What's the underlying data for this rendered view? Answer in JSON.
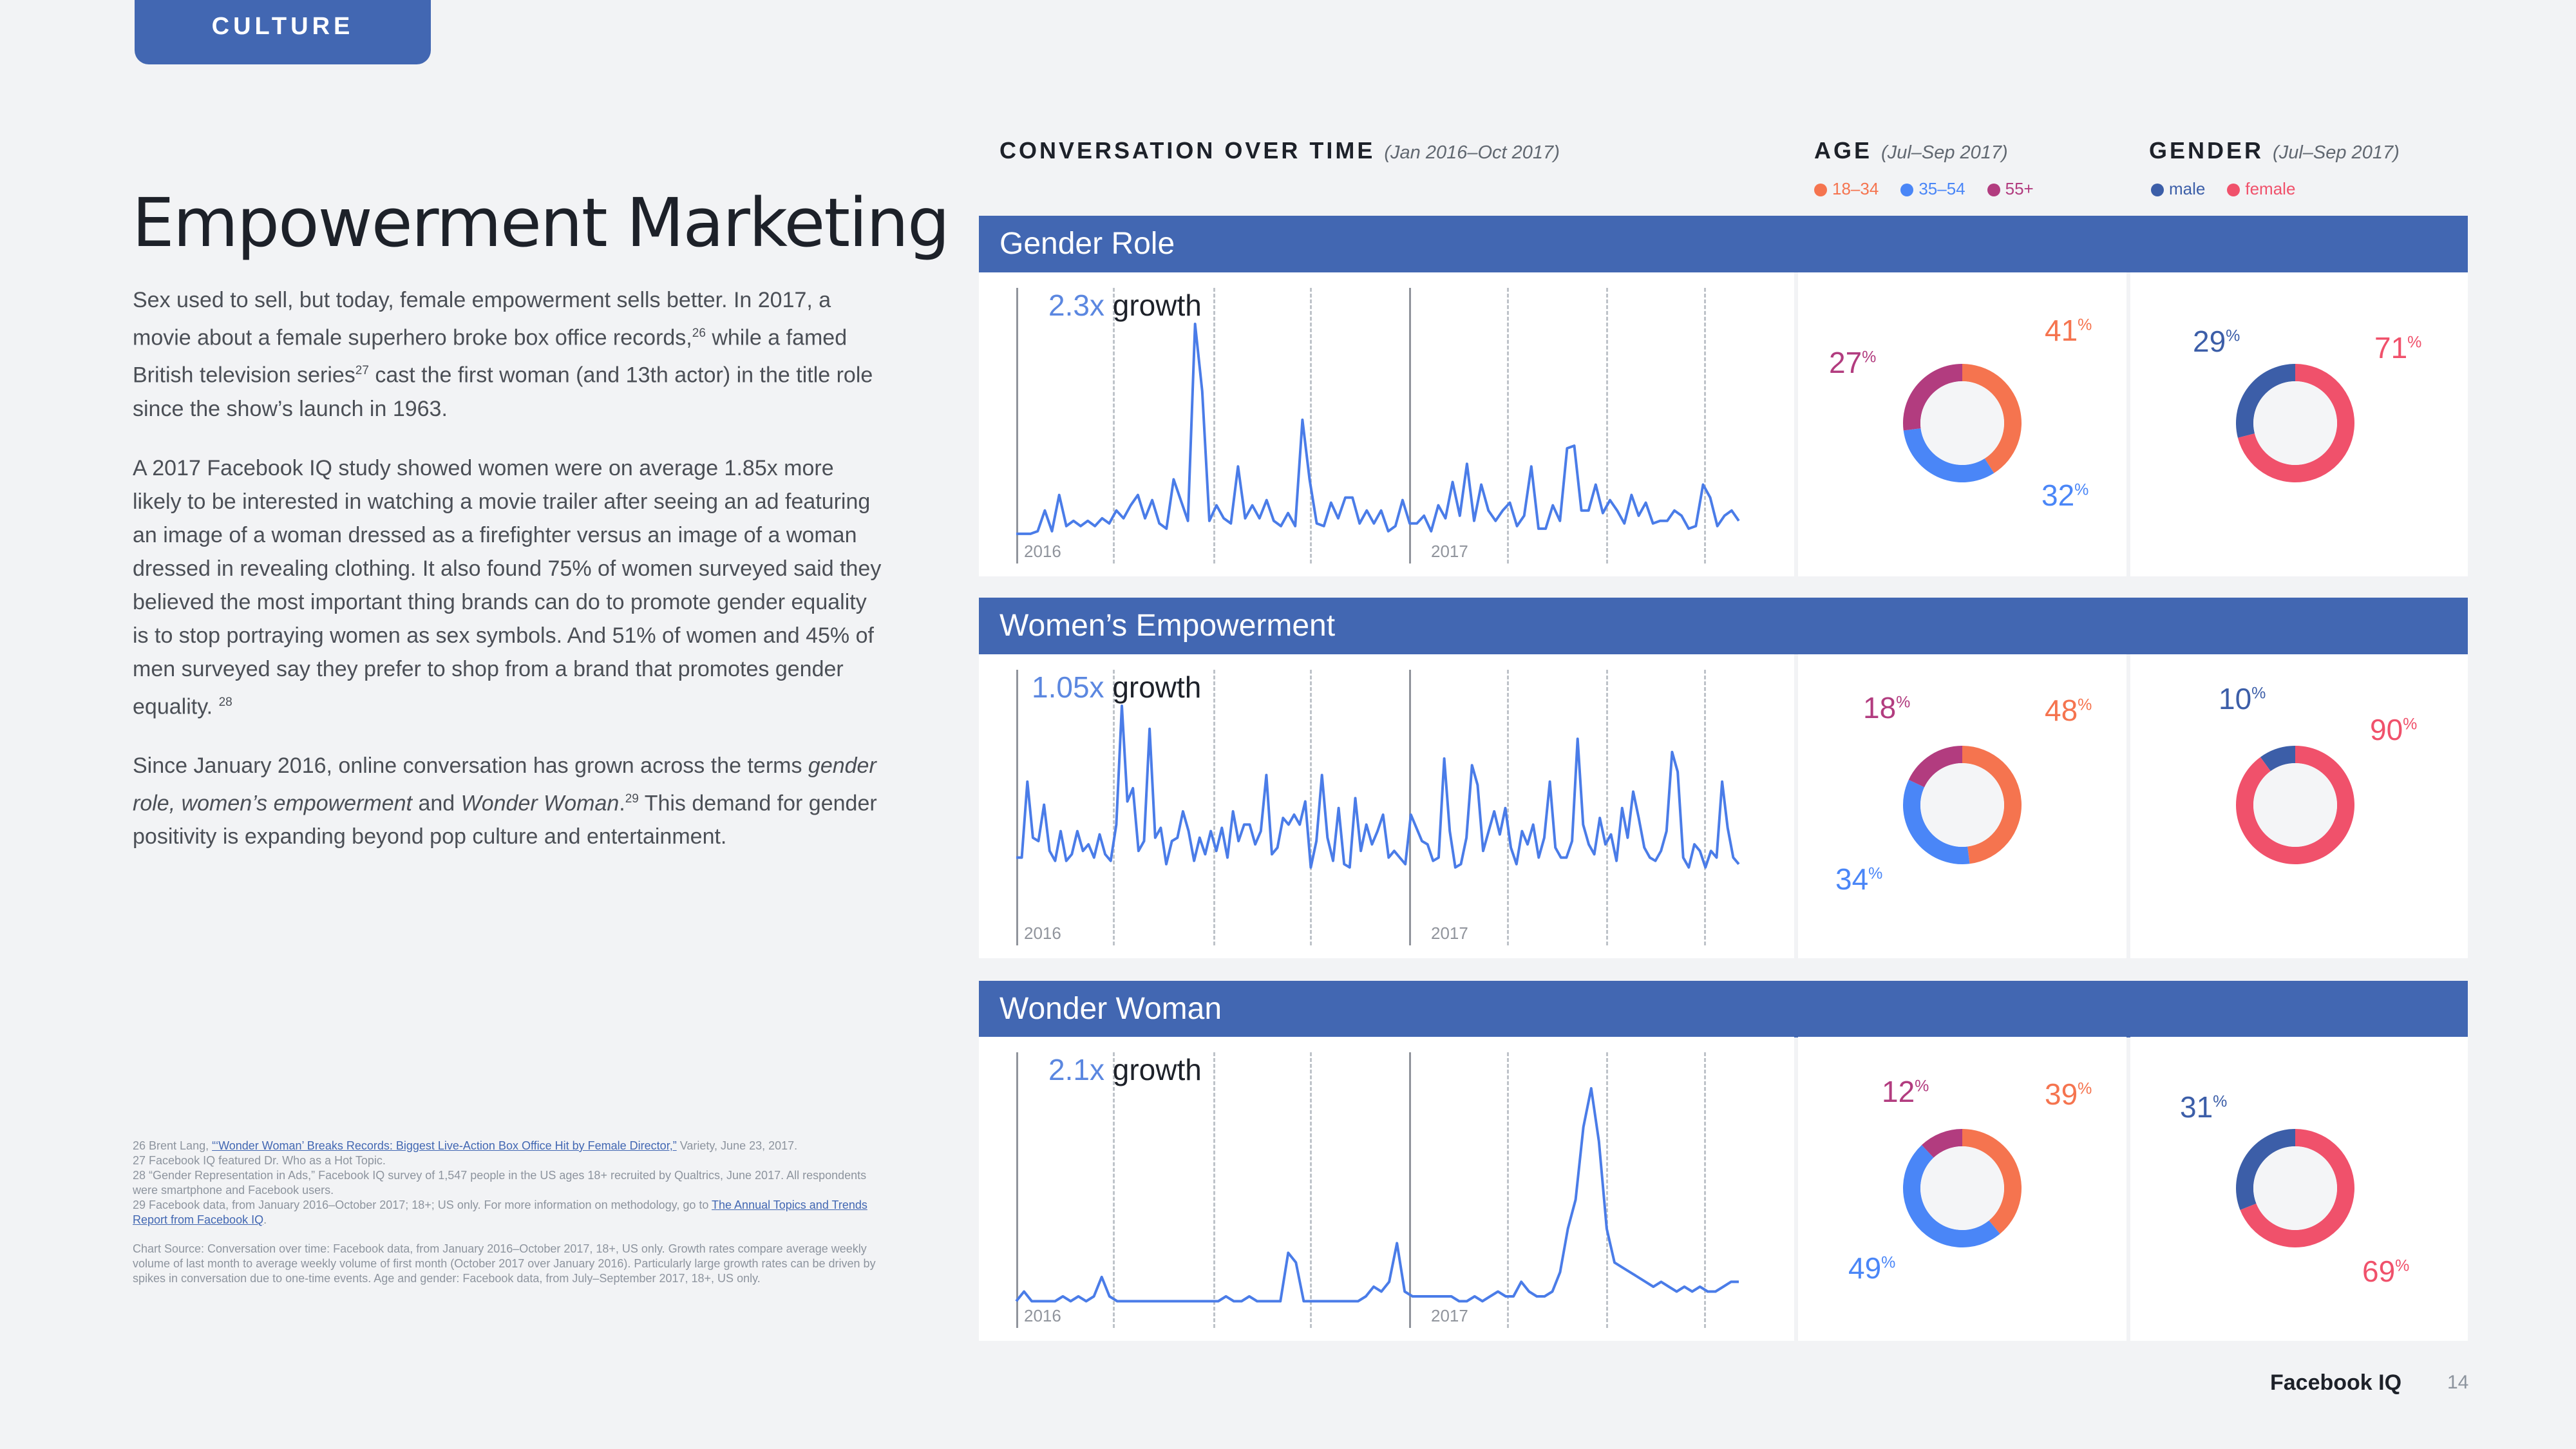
{
  "tab": "CULTURE",
  "title": "Empowerment Marketing",
  "paragraphs": {
    "p1a": "Sex used to sell, but today, female empowerment sells better. In 2017, a movie about a female superhero broke box office records,",
    "p1_sup1": "26",
    "p1b": " while a famed British television series",
    "p1_sup2": "27",
    "p1c": " cast the first woman (and 13th actor) in the title role since the show’s launch in 1963.",
    "p2": "A 2017 Facebook IQ study showed women were on average 1.85x more likely to be interested in watching a movie trailer after seeing an ad featuring an image of a woman dressed as a firefighter versus an image of a woman dressed in revealing clothing. It also found 75% of women surveyed said they believed the most important thing brands can do to promote gender equality is to stop portraying women as sex symbols. And 51% of women and 45% of men surveyed say they prefer to shop from a brand that promotes gender equality.",
    "p2_sup": "28",
    "p3a": "Since January 2016, online conversation has grown across the terms ",
    "p3_em": "gender role, women’s empowerment",
    "p3b": " and ",
    "p3_em2": "Wonder Woman",
    "p3c": ".",
    "p3_sup": "29",
    "p3d": " This demand for gender positivity is expanding beyond pop culture and entertainment."
  },
  "footnotes": {
    "f26a": "26  Brent Lang, ",
    "f26_link": "“‘Wonder Woman’ Breaks Records: Biggest Live-Action Box Office Hit by Female Director,”",
    "f26b": " Variety, June 23, 2017.",
    "f27": "27  Facebook IQ featured Dr. Who as a Hot Topic.",
    "f28": "28  “Gender Representation in Ads,” Facebook IQ survey of 1,547 people in the US ages 18+ recruited by Qualtrics, June 2017. All respondents were smartphone and Facebook users.",
    "f29a": "29  Facebook data, from January 2016–October 2017; 18+; US only. For more information on methodology, go to ",
    "f29_link": "The Annual Topics and Trends Report from Facebook IQ",
    "f29b": ".",
    "source": "Chart Source:  Conversation over time: Facebook data, from January 2016–October 2017, 18+, US only. Growth rates compare average weekly volume of last month to average weekly volume of first month (October 2017 over January 2016). Particularly large growth rates can be driven by spikes in conversation due to one-time events. Age and gender: Facebook data, from July–September 2017, 18+, US only."
  },
  "headers": {
    "conversation": "CONVERSATION OVER TIME",
    "conversation_sub": "(Jan 2016–Oct 2017)",
    "age": "AGE",
    "age_sub": "(Jul–Sep 2017)",
    "gender": "GENDER",
    "gender_sub": "(Jul–Sep 2017)"
  },
  "legend": {
    "age": [
      {
        "label": "18–34",
        "color": "#f5744f"
      },
      {
        "label": "35–54",
        "color": "#4a86f7"
      },
      {
        "label": "55+",
        "color": "#b23c7f"
      }
    ],
    "gender": [
      {
        "label": "male",
        "color": "#3c5ea8"
      },
      {
        "label": "female",
        "color": "#f0516b"
      }
    ]
  },
  "topics": [
    {
      "name": "Gender Role",
      "growth": "2.3x",
      "growth_label": "growth",
      "year1": "2016",
      "year2": "2017"
    },
    {
      "name": "Women’s Empowerment",
      "growth": "1.05x",
      "growth_label": "growth",
      "year1": "2016",
      "year2": "2017"
    },
    {
      "name": "Wonder Woman",
      "growth": "2.1x",
      "growth_label": "growth",
      "year1": "2016",
      "year2": "2017"
    }
  ],
  "chart_data": [
    {
      "type": "line",
      "title": "Gender Role",
      "subtitle": "2.3x growth",
      "x_labels": [
        "2016",
        "2017"
      ],
      "series": [
        {
          "values": [
            3,
            3,
            3,
            4,
            12,
            4,
            18,
            6,
            8,
            6,
            8,
            6,
            9,
            7,
            12,
            9,
            14,
            18,
            9,
            16,
            7,
            5,
            24,
            16,
            8,
            84,
            58,
            8,
            14,
            9,
            7,
            29,
            9,
            14,
            9,
            16,
            8,
            6,
            11,
            6,
            47,
            24,
            7,
            6,
            15,
            9,
            17,
            17,
            7,
            12,
            7,
            12,
            4,
            6,
            16,
            7,
            7,
            10,
            4,
            14,
            9,
            23,
            10,
            30,
            8,
            22,
            12,
            8,
            12,
            15,
            6,
            10,
            29,
            5,
            5,
            14,
            8,
            36,
            37,
            12,
            12,
            22,
            11,
            16,
            12,
            7,
            18,
            10,
            15,
            7,
            8,
            8,
            12,
            10,
            5,
            6,
            22,
            17,
            6,
            10,
            12,
            8
          ]
        }
      ]
    },
    {
      "type": "line",
      "title": "Women’s Empowerment",
      "subtitle": "1.05x growth",
      "x_labels": [
        "2016",
        "2017"
      ],
      "series": [
        {
          "values": [
            20,
            20,
            43,
            26,
            25,
            36,
            22,
            19,
            28,
            19,
            21,
            28,
            22,
            24,
            20,
            27,
            21,
            19,
            30,
            66,
            37,
            41,
            22,
            25,
            59,
            26,
            29,
            18,
            25,
            26,
            34,
            28,
            19,
            26,
            21,
            28,
            22,
            29,
            20,
            34,
            25,
            30,
            30,
            24,
            28,
            45,
            21,
            23,
            32,
            30,
            33,
            30,
            37,
            17,
            25,
            45,
            26,
            19,
            35,
            18,
            17,
            38,
            22,
            30,
            24,
            28,
            33,
            20,
            22,
            20,
            18,
            33,
            29,
            25,
            24,
            19,
            20,
            50,
            28,
            17,
            18,
            26,
            48,
            42,
            22,
            28,
            34,
            27,
            35,
            23,
            18,
            28,
            24,
            30,
            20,
            26,
            43,
            23,
            20,
            20,
            25,
            56,
            30,
            24,
            21,
            32,
            24,
            27,
            19,
            35,
            26,
            40,
            32,
            23,
            20,
            19,
            22,
            28,
            52,
            46,
            20,
            17,
            24,
            22,
            17,
            22,
            20,
            43,
            29,
            20,
            18
          ]
        }
      ]
    },
    {
      "type": "line",
      "title": "Wonder Woman",
      "subtitle": "2.1x growth",
      "x_labels": [
        "2016",
        "2017"
      ],
      "series": [
        {
          "values": [
            1,
            3,
            1,
            1,
            1,
            1,
            2,
            1,
            2,
            1,
            2,
            6,
            2,
            1,
            1,
            1,
            1,
            1,
            1,
            1,
            1,
            1,
            1,
            1,
            1,
            1,
            1,
            2,
            1,
            1,
            2,
            1,
            1,
            1,
            1,
            11,
            9,
            1,
            1,
            1,
            1,
            1,
            1,
            1,
            1,
            2,
            4,
            3,
            5,
            13,
            3,
            2,
            2,
            2,
            2,
            2,
            2,
            1,
            1,
            2,
            1,
            2,
            3,
            2,
            2,
            5,
            3,
            2,
            2,
            3,
            7,
            16,
            22,
            37,
            45,
            34,
            16,
            9,
            8,
            7,
            6,
            5,
            4,
            5,
            4,
            3,
            4,
            3,
            4,
            3,
            3,
            4,
            5,
            5
          ]
        }
      ]
    },
    {
      "type": "pie",
      "title": "Gender Role – Age",
      "categories": [
        "18–34",
        "35–54",
        "55+"
      ],
      "values": [
        41,
        32,
        27
      ]
    },
    {
      "type": "pie",
      "title": "Gender Role – Gender",
      "categories": [
        "male",
        "female"
      ],
      "values": [
        29,
        71
      ]
    },
    {
      "type": "pie",
      "title": "Women’s Empowerment – Age",
      "categories": [
        "18–34",
        "35–54",
        "55+"
      ],
      "values": [
        48,
        34,
        18
      ]
    },
    {
      "type": "pie",
      "title": "Women’s Empowerment – Gender",
      "categories": [
        "male",
        "female"
      ],
      "values": [
        10,
        90
      ]
    },
    {
      "type": "pie",
      "title": "Wonder Woman – Age",
      "categories": [
        "18–34",
        "35–54",
        "55+"
      ],
      "values": [
        39,
        49,
        12
      ]
    },
    {
      "type": "pie",
      "title": "Wonder Woman – Gender",
      "categories": [
        "male",
        "female"
      ],
      "values": [
        31,
        69
      ]
    }
  ],
  "percent_sign": "%",
  "brand": "Facebook IQ",
  "page_number": "14",
  "colors": {
    "accent": "#4267b2",
    "line": "#4a7ce8",
    "panel": "#ffffff",
    "page": "#f2f3f5"
  }
}
